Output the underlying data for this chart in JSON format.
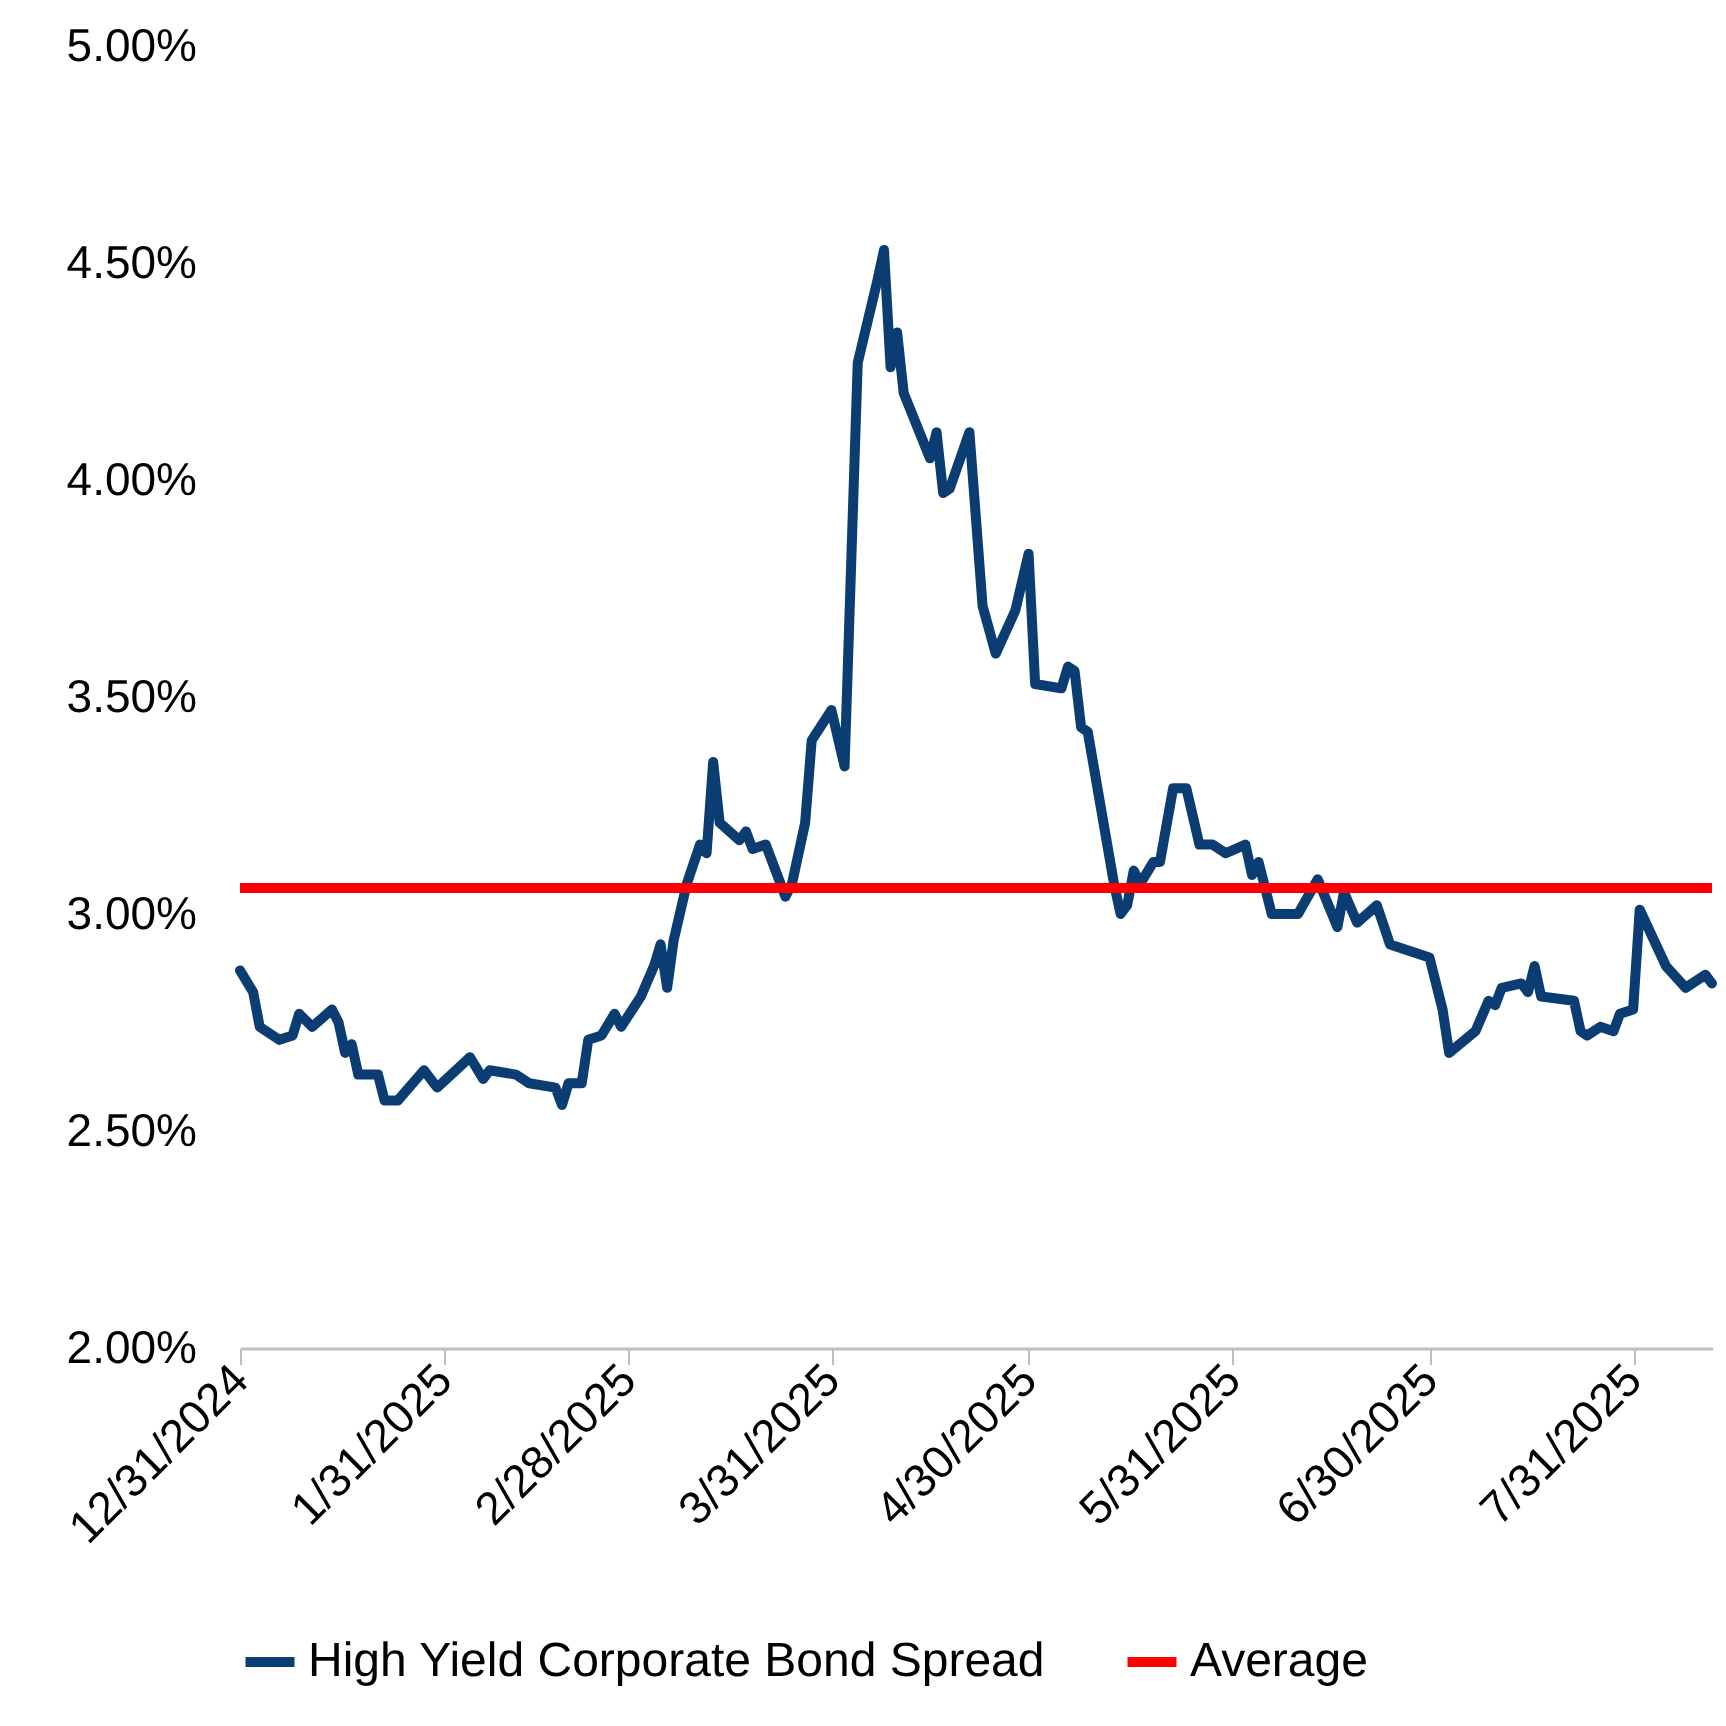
{
  "chart_data": {
    "type": "line",
    "x": [
      "2024-12-31",
      "2025-01-02",
      "2025-01-03",
      "2025-01-06",
      "2025-01-08",
      "2025-01-09",
      "2025-01-11",
      "2025-01-14",
      "2025-01-15",
      "2025-01-16",
      "2025-01-17",
      "2025-01-18",
      "2025-01-21",
      "2025-01-22",
      "2025-01-24",
      "2025-01-28",
      "2025-01-30",
      "2025-02-04",
      "2025-02-06",
      "2025-02-07",
      "2025-02-11",
      "2025-02-13",
      "2025-02-17",
      "2025-02-18",
      "2025-02-19",
      "2025-02-21",
      "2025-02-22",
      "2025-02-24",
      "2025-02-26",
      "2025-02-27",
      "2025-03-02",
      "2025-03-04",
      "2025-03-05",
      "2025-03-06",
      "2025-03-07",
      "2025-03-09",
      "2025-03-11",
      "2025-03-12",
      "2025-03-13",
      "2025-03-14",
      "2025-03-17",
      "2025-03-18",
      "2025-03-19",
      "2025-03-21",
      "2025-03-24",
      "2025-03-25",
      "2025-03-27",
      "2025-03-28",
      "2025-03-31",
      "2025-04-02",
      "2025-04-04",
      "2025-04-07",
      "2025-04-08",
      "2025-04-09",
      "2025-04-10",
      "2025-04-11",
      "2025-04-15",
      "2025-04-16",
      "2025-04-17",
      "2025-04-18",
      "2025-04-21",
      "2025-04-23",
      "2025-04-25",
      "2025-04-28",
      "2025-04-30",
      "2025-05-01",
      "2025-05-05",
      "2025-05-06",
      "2025-05-07",
      "2025-05-08",
      "2025-05-09",
      "2025-05-13",
      "2025-05-14",
      "2025-05-15",
      "2025-05-16",
      "2025-05-17",
      "2025-05-19",
      "2025-05-20",
      "2025-05-22",
      "2025-05-24",
      "2025-05-26",
      "2025-05-28",
      "2025-05-30",
      "2025-06-02",
      "2025-06-03",
      "2025-06-04",
      "2025-06-06",
      "2025-06-10",
      "2025-06-13",
      "2025-06-16",
      "2025-06-17",
      "2025-06-19",
      "2025-06-22",
      "2025-06-24",
      "2025-06-30",
      "2025-07-02",
      "2025-07-03",
      "2025-07-07",
      "2025-07-09",
      "2025-07-10",
      "2025-07-11",
      "2025-07-14",
      "2025-07-15",
      "2025-07-16",
      "2025-07-17",
      "2025-07-22",
      "2025-07-23",
      "2025-07-24",
      "2025-07-26",
      "2025-07-28",
      "2025-07-29",
      "2025-07-31",
      "2025-08-01",
      "2025-08-05",
      "2025-08-08",
      "2025-08-11",
      "2025-08-12"
    ],
    "series": [
      {
        "name": "High Yield Corporate Bond Spread",
        "color": "#0b3d73",
        "values": [
          2.87,
          2.82,
          2.74,
          2.71,
          2.72,
          2.77,
          2.74,
          2.78,
          2.75,
          2.68,
          2.7,
          2.63,
          2.63,
          2.57,
          2.57,
          2.64,
          2.6,
          2.67,
          2.62,
          2.64,
          2.63,
          2.61,
          2.6,
          2.56,
          2.61,
          2.61,
          2.71,
          2.72,
          2.77,
          2.74,
          2.81,
          2.88,
          2.93,
          2.83,
          2.94,
          3.07,
          3.16,
          3.14,
          3.35,
          3.21,
          3.17,
          3.19,
          3.15,
          3.16,
          3.04,
          3.07,
          3.21,
          3.4,
          3.47,
          3.34,
          4.27,
          4.46,
          4.53,
          4.26,
          4.34,
          4.2,
          4.05,
          4.11,
          3.97,
          3.98,
          4.11,
          3.71,
          3.6,
          3.7,
          3.83,
          3.53,
          3.52,
          3.57,
          3.56,
          3.43,
          3.42,
          3.07,
          3.0,
          3.02,
          3.1,
          3.07,
          3.12,
          3.12,
          3.29,
          3.29,
          3.16,
          3.16,
          3.14,
          3.16,
          3.09,
          3.12,
          3.0,
          3.0,
          3.08,
          2.97,
          3.05,
          2.98,
          3.02,
          2.93,
          2.9,
          2.78,
          2.68,
          2.73,
          2.8,
          2.79,
          2.83,
          2.84,
          2.82,
          2.88,
          2.81,
          2.8,
          2.73,
          2.72,
          2.74,
          2.73,
          2.77,
          2.78,
          3.01,
          2.88,
          2.83,
          2.86,
          2.84
        ]
      }
    ],
    "ref_lines": [
      {
        "axis": "y",
        "value": 3.06,
        "label": "Average",
        "color": "#ff0000"
      }
    ],
    "xlim": [
      "2024-12-31",
      "2025-08-12"
    ],
    "xticks": [
      {
        "value": "2024-12-31",
        "label": "12/31/2024"
      },
      {
        "value": "2025-01-31",
        "label": "1/31/2025"
      },
      {
        "value": "2025-02-28",
        "label": "2/28/2025"
      },
      {
        "value": "2025-03-31",
        "label": "3/31/2025"
      },
      {
        "value": "2025-04-30",
        "label": "4/30/2025"
      },
      {
        "value": "2025-05-31",
        "label": "5/31/2025"
      },
      {
        "value": "2025-06-30",
        "label": "6/30/2025"
      },
      {
        "value": "2025-07-31",
        "label": "7/31/2025"
      }
    ],
    "ylim": [
      2,
      5
    ],
    "yticks": [
      {
        "value": 2,
        "label": "2.00%"
      },
      {
        "value": 2.5,
        "label": "2.50%"
      },
      {
        "value": 3,
        "label": "3.00%"
      },
      {
        "value": 3.5,
        "label": "3.50%"
      },
      {
        "value": 4,
        "label": "4.00%"
      },
      {
        "value": 4.5,
        "label": "4.50%"
      },
      {
        "value": 5,
        "label": "5.00%"
      }
    ],
    "grid": false,
    "legend": "bottom"
  }
}
